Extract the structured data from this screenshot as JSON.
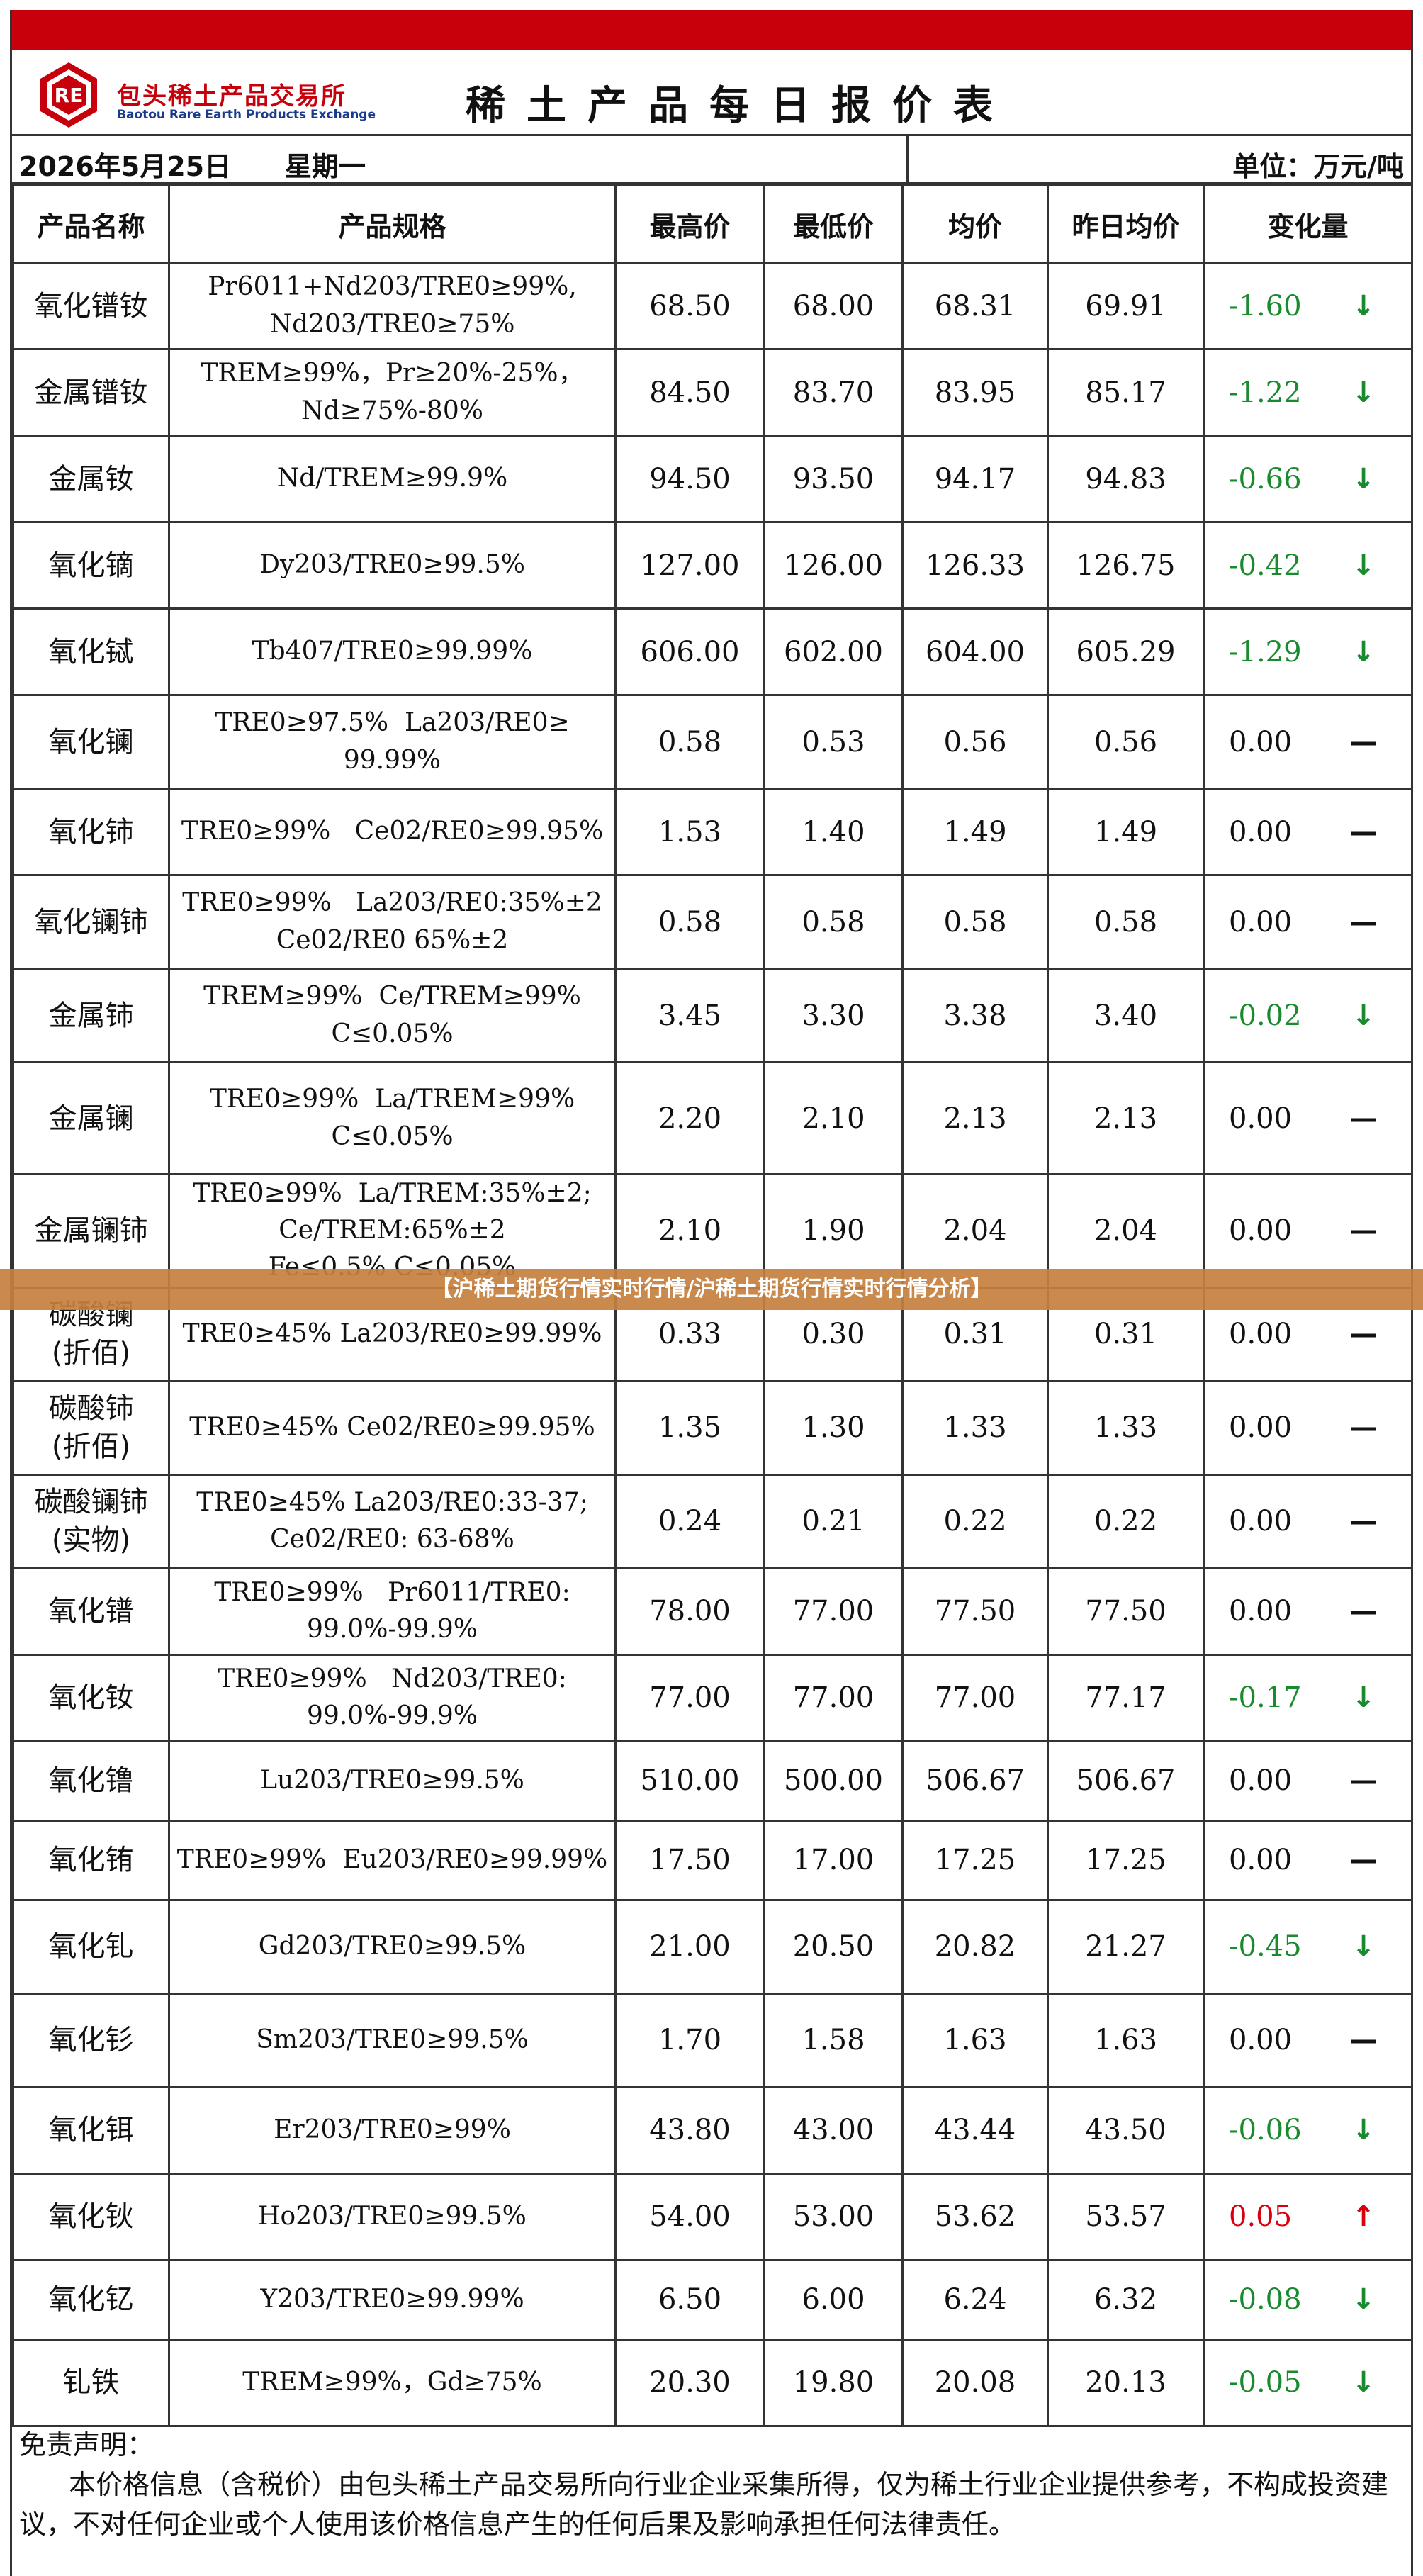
{
  "header": {
    "brand_cn": "包头稀土产品交易所",
    "brand_en": "Baotou Rare Earth Products Exchange",
    "logo_text": "RE",
    "title": "稀土产品每日报价表"
  },
  "subhead": {
    "date": "2026年5月25日",
    "weekday": "星期一",
    "unit": "单位：万元/吨"
  },
  "columns": [
    "产品名称",
    "产品规格",
    "最高价",
    "最低价",
    "均价",
    "昨日均价",
    "变化量"
  ],
  "rows": [
    {
      "name": "氧化镨钕",
      "spec": [
        "Pr6011+Nd203/TRE0≥99%,",
        "Nd203/TRE0≥75%"
      ],
      "high": "68.50",
      "low": "68.00",
      "avg": "68.31",
      "prev": "69.91",
      "change": "-1.60",
      "dir": "down"
    },
    {
      "name": "金属镨钕",
      "spec": [
        "TREM≥99%，Pr≥20%-25%，",
        "Nd≥75%-80%"
      ],
      "high": "84.50",
      "low": "83.70",
      "avg": "83.95",
      "prev": "85.17",
      "change": "-1.22",
      "dir": "down"
    },
    {
      "name": "金属钕",
      "spec": [
        "Nd/TREM≥99.9%"
      ],
      "high": "94.50",
      "low": "93.50",
      "avg": "94.17",
      "prev": "94.83",
      "change": "-0.66",
      "dir": "down"
    },
    {
      "name": "氧化镝",
      "spec": [
        "Dy203/TRE0≥99.5%"
      ],
      "high": "127.00",
      "low": "126.00",
      "avg": "126.33",
      "prev": "126.75",
      "change": "-0.42",
      "dir": "down"
    },
    {
      "name": "氧化铽",
      "spec": [
        "Tb407/TRE0≥99.99%"
      ],
      "high": "606.00",
      "low": "602.00",
      "avg": "604.00",
      "prev": "605.29",
      "change": "-1.29",
      "dir": "down"
    },
    {
      "name": "氧化镧",
      "spec": [
        "TRE0≥97.5%  La203/RE0≥",
        "99.99%"
      ],
      "high": "0.58",
      "low": "0.53",
      "avg": "0.56",
      "prev": "0.56",
      "change": "0.00",
      "dir": "flat"
    },
    {
      "name": "氧化铈",
      "spec": [
        "TRE0≥99%   Ce02/RE0≥99.95%"
      ],
      "high": "1.53",
      "low": "1.40",
      "avg": "1.49",
      "prev": "1.49",
      "change": "0.00",
      "dir": "flat"
    },
    {
      "name": "氧化镧铈",
      "spec": [
        "TRE0≥99%   La203/RE0:35%±2",
        "Ce02/RE0 65%±2"
      ],
      "high": "0.58",
      "low": "0.58",
      "avg": "0.58",
      "prev": "0.58",
      "change": "0.00",
      "dir": "flat"
    },
    {
      "name": "金属铈",
      "spec": [
        "TREM≥99%  Ce/TREM≥99%",
        "C≤0.05%"
      ],
      "high": "3.45",
      "low": "3.30",
      "avg": "3.38",
      "prev": "3.40",
      "change": "-0.02",
      "dir": "down"
    },
    {
      "name": "金属镧",
      "spec": [
        "TRE0≥99%  La/TREM≥99%",
        "C≤0.05%"
      ],
      "high": "2.20",
      "low": "2.10",
      "avg": "2.13",
      "prev": "2.13",
      "change": "0.00",
      "dir": "flat"
    },
    {
      "name": "金属镧铈",
      "spec": [
        "TRE0≥99%  La/TREM:35%±2;",
        "Ce/TREM:65%±2",
        "Fe≤0.5% C≤0.05%"
      ],
      "high": "2.10",
      "low": "1.90",
      "avg": "2.04",
      "prev": "2.04",
      "change": "0.00",
      "dir": "flat"
    },
    {
      "name": [
        "碳酸镧",
        "(折佰)"
      ],
      "spec": [
        "TRE0≥45% La203/RE0≥99.99%"
      ],
      "high": "0.33",
      "low": "0.30",
      "avg": "0.31",
      "prev": "0.31",
      "change": "0.00",
      "dir": "flat"
    },
    {
      "name": [
        "碳酸铈",
        "(折佰)"
      ],
      "spec": [
        "TRE0≥45% Ce02/RE0≥99.95%"
      ],
      "high": "1.35",
      "low": "1.30",
      "avg": "1.33",
      "prev": "1.33",
      "change": "0.00",
      "dir": "flat"
    },
    {
      "name": [
        "碳酸镧铈",
        "(实物)"
      ],
      "spec": [
        "TRE0≥45% La203/RE0:33-37;",
        "Ce02/RE0: 63-68%"
      ],
      "high": "0.24",
      "low": "0.21",
      "avg": "0.22",
      "prev": "0.22",
      "change": "0.00",
      "dir": "flat"
    },
    {
      "name": "氧化镨",
      "spec": [
        "TRE0≥99%   Pr6011/TRE0:",
        "99.0%-99.9%"
      ],
      "high": "78.00",
      "low": "77.00",
      "avg": "77.50",
      "prev": "77.50",
      "change": "0.00",
      "dir": "flat"
    },
    {
      "name": "氧化钕",
      "spec": [
        "TRE0≥99%   Nd203/TRE0:",
        "99.0%-99.9%"
      ],
      "high": "77.00",
      "low": "77.00",
      "avg": "77.00",
      "prev": "77.17",
      "change": "-0.17",
      "dir": "down"
    },
    {
      "name": "氧化镥",
      "spec": [
        "Lu203/TRE0≥99.5%"
      ],
      "high": "510.00",
      "low": "500.00",
      "avg": "506.67",
      "prev": "506.67",
      "change": "0.00",
      "dir": "flat"
    },
    {
      "name": "氧化铕",
      "spec": [
        "TRE0≥99%  Eu203/RE0≥99.99%"
      ],
      "high": "17.50",
      "low": "17.00",
      "avg": "17.25",
      "prev": "17.25",
      "change": "0.00",
      "dir": "flat"
    },
    {
      "name": "氧化钆",
      "spec": [
        "Gd203/TRE0≥99.5%"
      ],
      "high": "21.00",
      "low": "20.50",
      "avg": "20.82",
      "prev": "21.27",
      "change": "-0.45",
      "dir": "down"
    },
    {
      "name": "氧化钐",
      "spec": [
        "Sm203/TRE0≥99.5%"
      ],
      "high": "1.70",
      "low": "1.58",
      "avg": "1.63",
      "prev": "1.63",
      "change": "0.00",
      "dir": "flat"
    },
    {
      "name": "氧化铒",
      "spec": [
        "Er203/TRE0≥99%"
      ],
      "high": "43.80",
      "low": "43.00",
      "avg": "43.44",
      "prev": "43.50",
      "change": "-0.06",
      "dir": "down"
    },
    {
      "name": "氧化钬",
      "spec": [
        "Ho203/TRE0≥99.5%"
      ],
      "high": "54.00",
      "low": "53.00",
      "avg": "53.62",
      "prev": "53.57",
      "change": "0.05",
      "dir": "up"
    },
    {
      "name": "氧化钇",
      "spec": [
        "Y203/TRE0≥99.99%"
      ],
      "high": "6.50",
      "low": "6.00",
      "avg": "6.24",
      "prev": "6.32",
      "change": "-0.08",
      "dir": "down"
    },
    {
      "name": "钆铁",
      "spec": [
        "TREM≥99%，Gd≥75%"
      ],
      "high": "20.30",
      "low": "19.80",
      "avg": "20.08",
      "prev": "20.13",
      "change": "-0.05",
      "dir": "down"
    }
  ],
  "symbols": {
    "down": "↓",
    "up": "↑",
    "flat": "—"
  },
  "colors": {
    "down": "#1a8a2e",
    "up": "#d9000e",
    "flat": "#111111",
    "topbar": "#c8000b",
    "banner": "#c6803e"
  },
  "footer": {
    "heading": "免责声明：",
    "text": "本价格信息（含税价）由包头稀土产品交易所向行业企业采集所得，仅为稀土行业企业提供参考，不构成投资建议，不对任何企业或个人使用该价格信息产生的任何后果及影响承担任何法律责任。"
  },
  "banner": "【沪稀土期货行情实时行情/沪稀土期货行情实时行情分析】"
}
